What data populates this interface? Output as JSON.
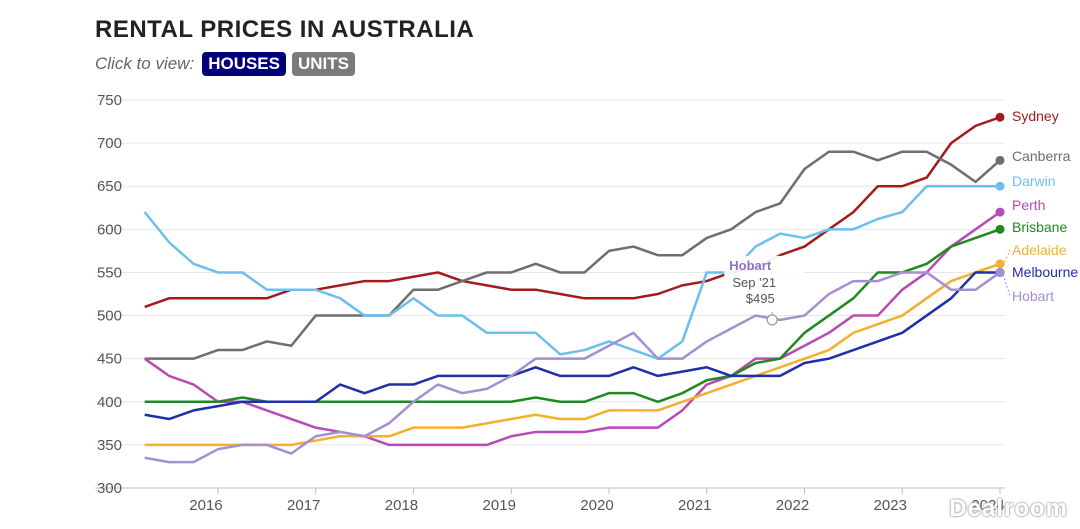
{
  "header": {
    "title": "RENTAL PRICES IN AUSTRALIA",
    "subtitle": "Click to view:",
    "houses_label": "HOUSES",
    "units_label": "UNITS"
  },
  "watermark": "Dealroom",
  "chart_data": {
    "type": "line",
    "title": "RENTAL PRICES IN AUSTRALIA",
    "xlabel": "",
    "ylabel": "",
    "ylim": [
      300,
      750
    ],
    "xlim": [
      2015.1,
      2024.0
    ],
    "yticks": [
      300,
      350,
      400,
      450,
      500,
      550,
      600,
      650,
      700,
      750
    ],
    "xticks": [
      2016,
      2017,
      2018,
      2019,
      2020,
      2021,
      2022,
      2023,
      2024
    ],
    "grid": true,
    "legend": "right end labels",
    "x": [
      2015.25,
      2015.5,
      2015.75,
      2016.0,
      2016.25,
      2016.5,
      2016.75,
      2017.0,
      2017.25,
      2017.5,
      2017.75,
      2018.0,
      2018.25,
      2018.5,
      2018.75,
      2019.0,
      2019.25,
      2019.5,
      2019.75,
      2020.0,
      2020.25,
      2020.5,
      2020.75,
      2021.0,
      2021.25,
      2021.5,
      2021.75,
      2022.0,
      2022.25,
      2022.5,
      2022.75,
      2023.0,
      2023.25,
      2023.5,
      2023.75,
      2024.0
    ],
    "series": [
      {
        "name": "Sydney",
        "color": "#a31b1b",
        "values": [
          510,
          520,
          520,
          520,
          520,
          520,
          530,
          530,
          535,
          540,
          540,
          545,
          550,
          540,
          535,
          530,
          530,
          525,
          520,
          520,
          520,
          525,
          535,
          540,
          550,
          555,
          570,
          580,
          600,
          620,
          650,
          650,
          660,
          700,
          720,
          730
        ]
      },
      {
        "name": "Canberra",
        "color": "#6e6e6e",
        "values": [
          450,
          450,
          450,
          460,
          460,
          470,
          465,
          500,
          500,
          500,
          500,
          530,
          530,
          540,
          550,
          550,
          560,
          550,
          550,
          575,
          580,
          570,
          570,
          590,
          600,
          620,
          630,
          670,
          690,
          690,
          680,
          690,
          690,
          675,
          655,
          680
        ]
      },
      {
        "name": "Darwin",
        "color": "#6dbfee",
        "values": [
          620,
          585,
          560,
          550,
          550,
          530,
          530,
          530,
          520,
          500,
          500,
          520,
          500,
          500,
          480,
          480,
          480,
          455,
          460,
          470,
          460,
          450,
          470,
          550,
          550,
          580,
          595,
          590,
          600,
          600,
          612,
          620,
          650,
          650,
          650,
          650
        ]
      },
      {
        "name": "Perth",
        "color": "#b84ab8",
        "values": [
          450,
          430,
          420,
          400,
          400,
          390,
          380,
          370,
          365,
          360,
          350,
          350,
          350,
          350,
          350,
          360,
          365,
          365,
          365,
          370,
          370,
          370,
          390,
          420,
          430,
          450,
          450,
          465,
          480,
          500,
          500,
          530,
          550,
          580,
          600,
          620
        ]
      },
      {
        "name": "Brisbane",
        "color": "#1f8a1f",
        "values": [
          400,
          400,
          400,
          400,
          405,
          400,
          400,
          400,
          400,
          400,
          400,
          400,
          400,
          400,
          400,
          400,
          405,
          400,
          400,
          410,
          410,
          400,
          410,
          425,
          430,
          445,
          450,
          480,
          500,
          520,
          550,
          550,
          560,
          580,
          590,
          600
        ]
      },
      {
        "name": "Adelaide",
        "color": "#f2b02e",
        "values": [
          350,
          350,
          350,
          350,
          350,
          350,
          350,
          355,
          360,
          360,
          360,
          370,
          370,
          370,
          375,
          380,
          385,
          380,
          380,
          390,
          390,
          390,
          400,
          410,
          420,
          430,
          440,
          450,
          460,
          480,
          490,
          500,
          520,
          540,
          550,
          560
        ]
      },
      {
        "name": "Melbourne",
        "color": "#1f2fa8",
        "values": [
          385,
          380,
          390,
          395,
          400,
          400,
          400,
          400,
          420,
          410,
          420,
          420,
          430,
          430,
          430,
          430,
          440,
          430,
          430,
          430,
          440,
          430,
          435,
          440,
          430,
          430,
          430,
          445,
          450,
          460,
          470,
          480,
          500,
          520,
          550,
          550
        ]
      },
      {
        "name": "Hobart",
        "color": "#a58fd1",
        "values": [
          335,
          330,
          330,
          345,
          350,
          350,
          340,
          360,
          365,
          360,
          375,
          400,
          420,
          410,
          415,
          430,
          450,
          450,
          450,
          465,
          480,
          450,
          450,
          470,
          485,
          500,
          495,
          500,
          525,
          540,
          540,
          550,
          550,
          530,
          530,
          550
        ]
      }
    ],
    "annotation": {
      "series": "Hobart",
      "date": "Sep '21",
      "value": "$495",
      "x": 2021.67,
      "y": 495
    }
  }
}
